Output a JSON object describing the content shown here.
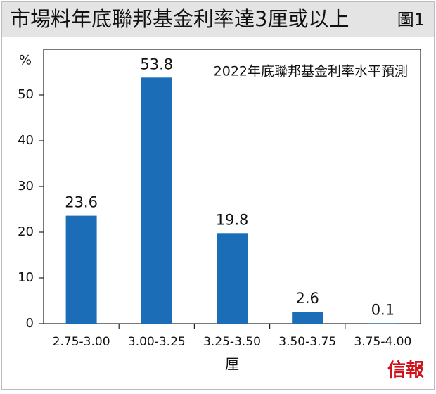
{
  "chart_data": {
    "type": "bar",
    "title": "市場料年底聯邦基金利率達3厘或以上",
    "figure_label": "圖1",
    "annotation": "2022年底聯邦基金利率水平預測",
    "y_label": "%",
    "x_label": "厘",
    "logo": "信報",
    "categories": [
      "2.75-3.00",
      "3.00-3.25",
      "3.25-3.50",
      "3.50-3.75",
      "3.75-4.00"
    ],
    "values": [
      23.6,
      53.8,
      19.8,
      2.6,
      0.1
    ],
    "color": "#1a6db6",
    "ylim": [
      0,
      60
    ],
    "yticks": [
      0,
      10,
      20,
      30,
      40,
      50
    ],
    "grid": false
  }
}
